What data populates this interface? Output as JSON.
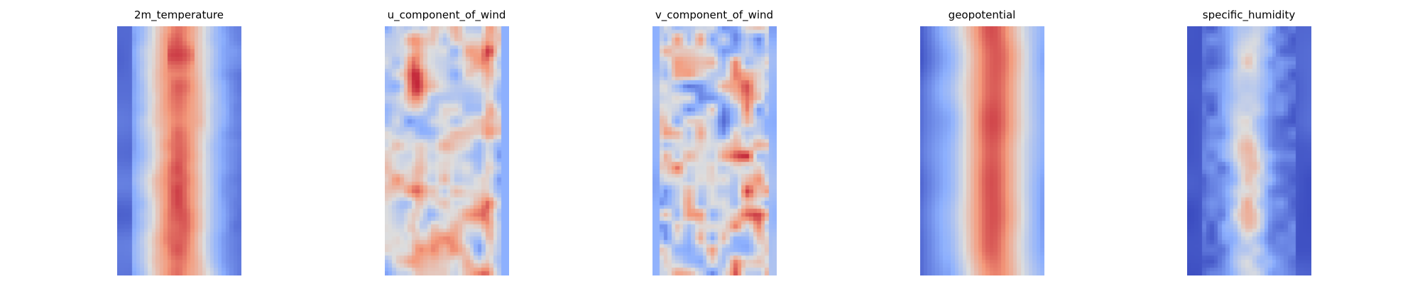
{
  "chart_data": [
    {
      "type": "heatmap",
      "title": "2m_temperature",
      "colormap": "coolwarm",
      "axes": "off",
      "field_profile": "warm-band",
      "rows": 64,
      "cols": 32,
      "seed": 11
    },
    {
      "type": "heatmap",
      "title": "u_component_of_wind",
      "colormap": "coolwarm",
      "axes": "off",
      "field_profile": "streaks",
      "rows": 64,
      "cols": 32,
      "seed": 23
    },
    {
      "type": "heatmap",
      "title": "v_component_of_wind",
      "colormap": "coolwarm",
      "axes": "off",
      "field_profile": "eddies",
      "rows": 64,
      "cols": 32,
      "seed": 37
    },
    {
      "type": "heatmap",
      "title": "geopotential",
      "colormap": "coolwarm",
      "axes": "off",
      "field_profile": "smooth-band",
      "rows": 64,
      "cols": 32,
      "seed": 41
    },
    {
      "type": "heatmap",
      "title": "specific_humidity",
      "colormap": "coolwarm",
      "axes": "off",
      "field_profile": "narrow-band",
      "rows": 64,
      "cols": 32,
      "seed": 53
    }
  ]
}
